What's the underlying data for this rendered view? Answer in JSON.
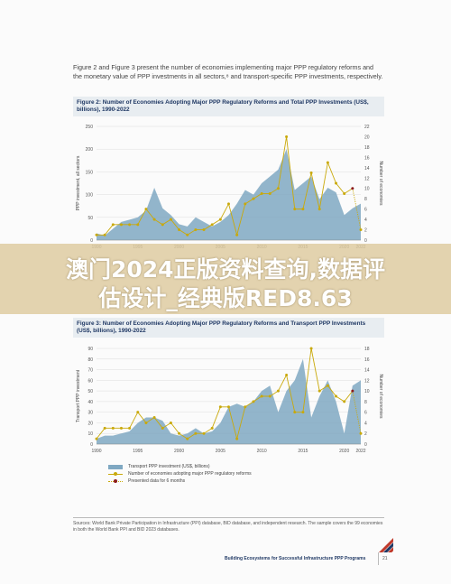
{
  "intro_text": "Figure 2 and Figure 3 present the number of economies implementing major PPP regulatory reforms and the monetary value of PPP investments in all sectors,⁸ and transport-specific PPP investments, respectively.",
  "banner": {
    "line1": "澳门2024正版资料查询,数据评",
    "line2": "估设计_经典版RED8.63"
  },
  "colors": {
    "area": "#7fa8c2",
    "line": "#c9a90a",
    "partial_point": "#8b1a1a",
    "title_text": "#1f3864",
    "title_bg": "#e8edf1"
  },
  "chart_data": [
    {
      "type": "area",
      "title": "Figure 2: Number of Economies Adopting Major PPP Regulatory Reforms and Total PPP Investments (US$, billions), 1990-2022",
      "ylabel": "PPP investment, all sectors",
      "y2label": "Number of economies",
      "ylim": [
        0,
        250
      ],
      "y2lim": [
        0,
        22
      ],
      "yticks": [
        "0",
        "50",
        "100",
        "150",
        "200",
        "250"
      ],
      "y2ticks": [
        "0",
        "2",
        "4",
        "6",
        "8",
        "10",
        "12",
        "14",
        "16",
        "18",
        "20",
        "22"
      ],
      "xtick_labels": [
        "1990",
        "1995",
        "2000",
        "2005",
        "2010",
        "2015",
        "2020",
        "2022"
      ],
      "x": [
        1990,
        1991,
        1992,
        1993,
        1994,
        1995,
        1996,
        1997,
        1998,
        1999,
        2000,
        2001,
        2002,
        2003,
        2004,
        2005,
        2006,
        2007,
        2008,
        2009,
        2010,
        2011,
        2012,
        2013,
        2014,
        2015,
        2016,
        2017,
        2018,
        2019,
        2020,
        2021,
        2022
      ],
      "series": [
        {
          "name": "PPP investment",
          "axis": "left",
          "values": [
            15,
            10,
            25,
            40,
            45,
            50,
            65,
            115,
            70,
            55,
            35,
            30,
            50,
            40,
            30,
            40,
            55,
            80,
            110,
            100,
            125,
            140,
            155,
            200,
            110,
            125,
            140,
            90,
            115,
            105,
            55,
            70,
            80
          ]
        },
        {
          "name": "Number of economies adopting major PPP regulatory reforms",
          "axis": "right",
          "values": [
            1,
            1,
            3,
            3,
            3,
            3,
            6,
            4,
            3,
            4,
            2,
            1,
            2,
            2,
            3,
            4,
            7,
            1,
            7,
            8,
            9,
            9,
            10,
            20,
            6,
            6,
            13,
            6,
            15,
            11,
            9,
            10,
            2
          ]
        }
      ]
    },
    {
      "type": "area",
      "title": "Figure 3: Number of Economies Adopting Major PPP Regulatory Reforms and Transport PPP Investments (US$, billions), 1990-2022",
      "ylabel": "Transport PPP investment",
      "y2label": "Number of economies",
      "ylim": [
        0,
        90
      ],
      "y2lim": [
        0,
        18
      ],
      "yticks": [
        "0",
        "10",
        "20",
        "30",
        "40",
        "50",
        "60",
        "70",
        "80",
        "90"
      ],
      "y2ticks": [
        "0",
        "2",
        "4",
        "6",
        "8",
        "10",
        "12",
        "14",
        "16",
        "18"
      ],
      "xtick_labels": [
        "1990",
        "1995",
        "2000",
        "2005",
        "2010",
        "2015",
        "2020",
        "2022"
      ],
      "x": [
        1990,
        1991,
        1992,
        1993,
        1994,
        1995,
        1996,
        1997,
        1998,
        1999,
        2000,
        2001,
        2002,
        2003,
        2004,
        2005,
        2006,
        2007,
        2008,
        2009,
        2010,
        2011,
        2012,
        2013,
        2014,
        2015,
        2016,
        2017,
        2018,
        2019,
        2020,
        2021,
        2022
      ],
      "series": [
        {
          "name": "Transport PPP investment (US$, billions)",
          "axis": "left",
          "values": [
            5,
            8,
            8,
            10,
            12,
            20,
            25,
            25,
            22,
            10,
            8,
            10,
            15,
            10,
            12,
            20,
            35,
            38,
            35,
            40,
            50,
            55,
            30,
            50,
            60,
            80,
            25,
            45,
            60,
            40,
            10,
            55,
            60
          ]
        },
        {
          "name": "Number of economies adopting major PPP regulatory reforms",
          "axis": "right",
          "values": [
            1,
            3,
            3,
            3,
            3,
            6,
            4,
            5,
            3,
            4,
            2,
            1,
            2,
            2,
            3,
            7,
            7,
            1,
            7,
            8,
            9,
            9,
            10,
            13,
            6,
            6,
            18,
            10,
            11,
            9,
            8,
            10,
            2
          ]
        }
      ],
      "legend": [
        "Transport PPP investment (US$, billions)",
        "Number of economies adopting major PPP regulatory reforms",
        "Presented data for 6 months"
      ]
    }
  ],
  "sources_text": "Sources: World Bank Private Participation in Infrastructure (PPI) database, BID database, and independent research. The sample covers the 99 economies in both the World Bank PPI and BID 2023 databases.",
  "footer": {
    "text": "Building Ecosystems for Successful Infrastructure PPP Programs",
    "page": "21"
  }
}
